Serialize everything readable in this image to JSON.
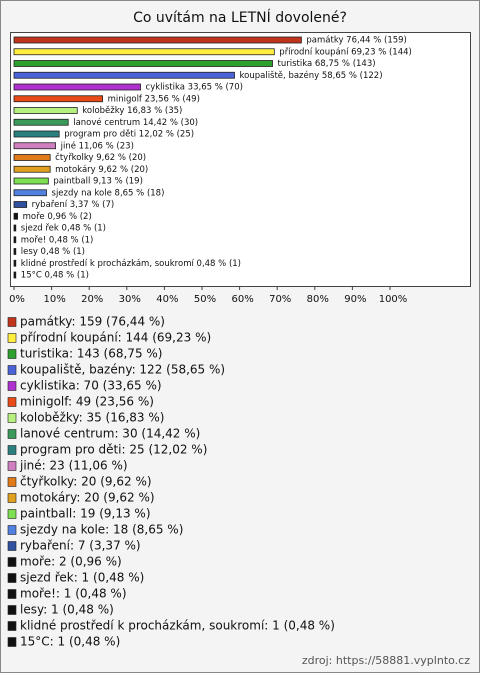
{
  "chart_data": {
    "type": "hbar",
    "title": "Co uvítám na LETNÍ dovolené?",
    "values": [
      76.44,
      69.23,
      68.75,
      58.65,
      33.65,
      23.56,
      16.83,
      14.42,
      12.02,
      11.06,
      9.62,
      9.62,
      9.13,
      8.65,
      3.37,
      0.96,
      0.48,
      0.48,
      0.48,
      0.48,
      0.48
    ],
    "value_labels": [
      "památky 76,44 % (159)",
      "přírodní koupání 69,23 % (144)",
      "turistika 68,75 % (143)",
      "koupaliště, bazény 58,65 % (122)",
      "cyklistika 33,65 % (70)",
      "minigolf 23,56 % (49)",
      "koloběžky 16,83 % (35)",
      "lanové centrum 14,42 % (30)",
      "program pro děti 12,02 % (25)",
      "jiné 11,06 % (23)",
      "čtyřkolky 9,62 % (20)",
      "motokáry 9,62 % (20)",
      "paintball 9,13 % (19)",
      "sjezdy na kole 8,65 % (18)",
      "rybaření 3,37 % (7)",
      "moře 0,96 % (2)",
      "sjezd řek 0,48 % (1)",
      "moře! 0,48 % (1)",
      "lesy 0,48 % (1)",
      "klidné prostředí k procházkám, soukromí 0,48 % (1)",
      "15°C 0,48 % (1)"
    ],
    "legend": [
      "památky: 159 (76,44 %)",
      "přírodní koupání: 144 (69,23 %)",
      "turistika: 143 (68,75 %)",
      "koupaliště, bazény: 122 (58,65 %)",
      "cyklistika: 70 (33,65 %)",
      "minigolf: 49 (23,56 %)",
      "koloběžky: 35 (16,83 %)",
      "lanové centrum: 30 (14,42 %)",
      "program pro děti: 25 (12,02 %)",
      "jiné: 23 (11,06 %)",
      "čtyřkolky: 20 (9,62 %)",
      "motokáry: 20 (9,62 %)",
      "paintball: 19 (9,13 %)",
      "sjezdy na kole: 18 (8,65 %)",
      "rybaření: 7 (3,37 %)",
      "moře: 2 (0,96 %)",
      "sjezd řek: 1 (0,48 %)",
      "moře!: 1 (0,48 %)",
      "lesy: 1 (0,48 %)",
      "klidné prostředí k procházkám, soukromí: 1 (0,48 %)",
      "15°C: 1 (0,48 %)"
    ],
    "colors": [
      "#c0341c",
      "#ffee40",
      "#2ea02e",
      "#4a63d8",
      "#b030d0",
      "#e84b18",
      "#b8f080",
      "#3a9a5a",
      "#2a7f7f",
      "#d080c0",
      "#e07a1a",
      "#e0a020",
      "#7ee050",
      "#5080e0",
      "#3050a0",
      "#111111",
      "#111111",
      "#111111",
      "#111111",
      "#111111",
      "#111111"
    ],
    "xlim": [
      0,
      100
    ],
    "xticks": [
      {
        "value": 0,
        "label": "0%"
      },
      {
        "value": 10,
        "label": "10%"
      },
      {
        "value": 20,
        "label": "20%"
      },
      {
        "value": 30,
        "label": "30%"
      },
      {
        "value": 40,
        "label": "40%"
      },
      {
        "value": 50,
        "label": "50%"
      },
      {
        "value": 60,
        "label": "60%"
      },
      {
        "value": 70,
        "label": "70%"
      },
      {
        "value": 80,
        "label": "80%"
      },
      {
        "value": 90,
        "label": "90%"
      },
      {
        "value": 100,
        "label": "100%"
      }
    ],
    "source": "zdroj: https://58881.vyplnto.cz"
  }
}
